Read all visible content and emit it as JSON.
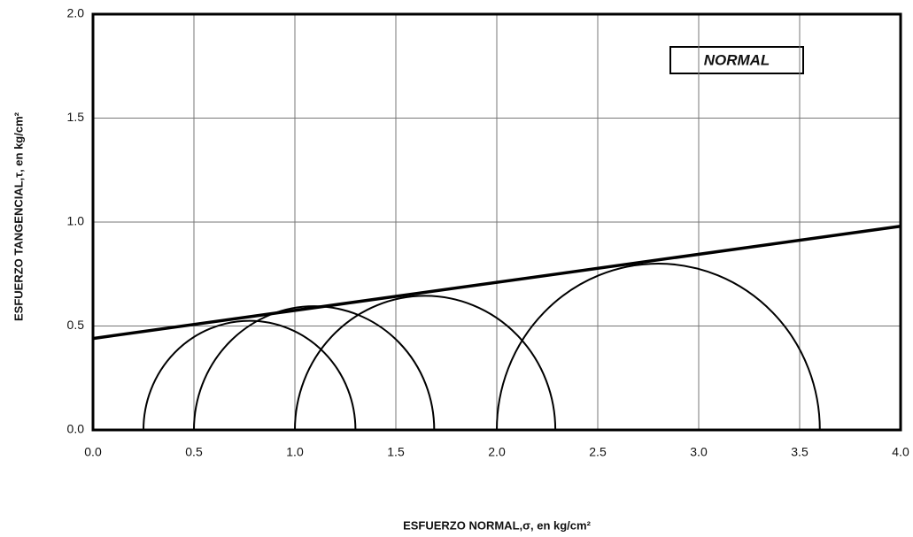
{
  "chart_data": {
    "type": "mohr",
    "annotation": "NORMAL",
    "x_label": "ESFUERZO NORMAL,σ, en kg/cm²",
    "y_label": "ESFUERZO TANGENCIAL,τ, en kg/cm²",
    "xlim": [
      0,
      4
    ],
    "xticks": [
      {
        "value": 0,
        "label": "0.0"
      },
      {
        "value": 0.5,
        "label": "0.5"
      },
      {
        "value": 1,
        "label": "1.0"
      },
      {
        "value": 1.5,
        "label": "1.5"
      },
      {
        "value": 2,
        "label": "2.0"
      },
      {
        "value": 2.5,
        "label": "2.5"
      },
      {
        "value": 3,
        "label": "3.0"
      },
      {
        "value": 3.5,
        "label": "3.5"
      },
      {
        "value": 4,
        "label": "4.0"
      }
    ],
    "ylim": [
      0,
      2
    ],
    "yticks": [
      {
        "value": 0,
        "label": "0.0"
      },
      {
        "value": 0.5,
        "label": "0.5"
      },
      {
        "value": 1,
        "label": "1.0"
      },
      {
        "value": 1.5,
        "label": "1.5"
      },
      {
        "value": 2,
        "label": "2.0"
      }
    ],
    "grid": true,
    "color": "#000000",
    "circles": [
      {
        "sigma3": 0.25,
        "sigma1": 1.3
      },
      {
        "sigma3": 0.5,
        "sigma1": 1.69
      },
      {
        "sigma3": 1.0,
        "sigma1": 2.29
      },
      {
        "sigma3": 2.0,
        "sigma1": 3.6
      }
    ],
    "envelope": {
      "x": [
        0,
        4
      ],
      "values": [
        0.44,
        0.98
      ]
    }
  }
}
